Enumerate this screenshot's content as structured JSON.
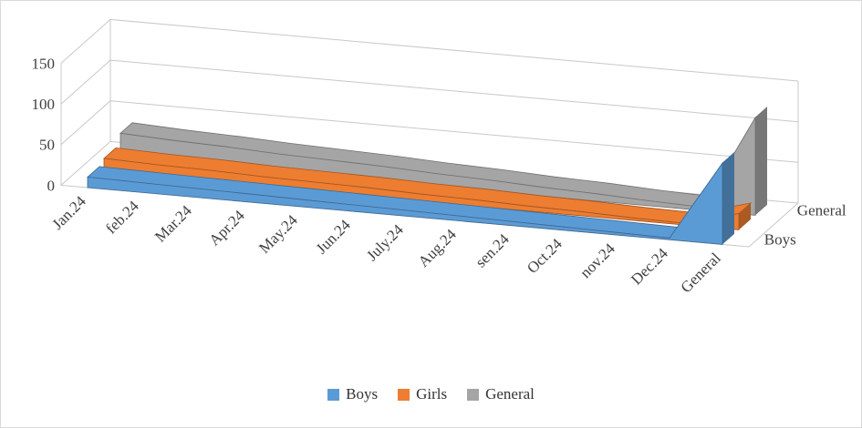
{
  "panel": {
    "background": "#ffffff",
    "border_color": "#d9d9d9",
    "grid_color": "#c8c8c8",
    "text_color": "#404040"
  },
  "chart_data": {
    "type": "area",
    "variant": "3d",
    "title": "",
    "categories": [
      "Jan.24",
      "feb.24",
      "Mar.24",
      "Apr.24",
      "May.24",
      "Jun.24",
      "July.24",
      "Aug.24",
      "sen.24",
      "Oct.24",
      "nov.24",
      "Dec.24",
      "General"
    ],
    "series": [
      {
        "name": "Boys",
        "color": "#5B9BD5",
        "values": [
          13,
          12,
          11,
          10,
          9,
          8,
          7,
          6,
          5,
          4,
          3,
          2,
          100
        ]
      },
      {
        "name": "Girls",
        "color": "#ED7D31",
        "values": [
          18,
          16,
          15,
          13,
          12,
          11,
          9,
          8,
          6,
          5,
          3,
          2,
          20
        ]
      },
      {
        "name": "General",
        "color": "#A5A5A5",
        "values": [
          31,
          28,
          26,
          23,
          21,
          19,
          16,
          14,
          11,
          9,
          6,
          4,
          120
        ]
      }
    ],
    "ylim": [
      0,
      150
    ],
    "yticks": [
      0,
      50,
      100,
      150
    ],
    "depth_axis_labels": [
      "General",
      "Boys"
    ],
    "legend_position": "bottom",
    "grid": true
  }
}
